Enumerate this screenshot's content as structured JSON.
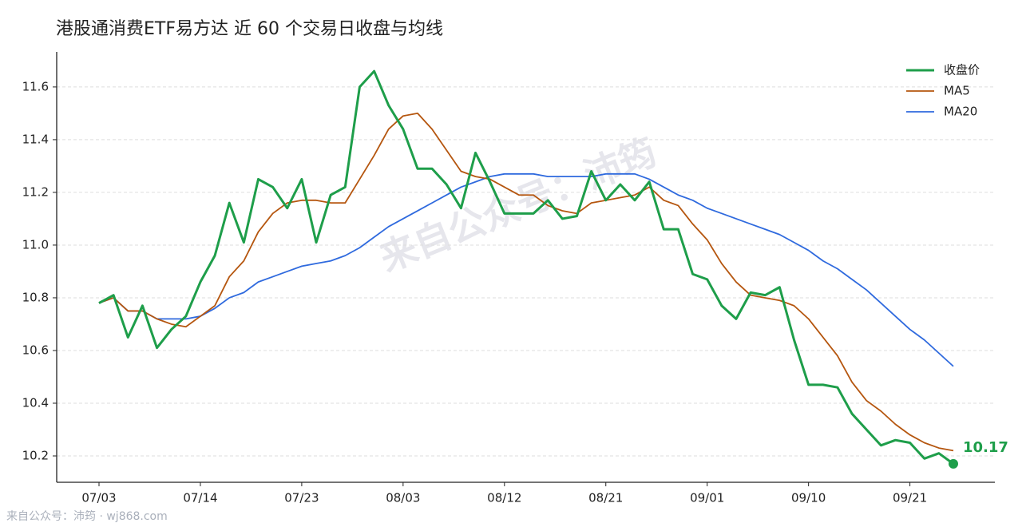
{
  "chart_data": {
    "type": "line",
    "title": "港股通消费ETF易方达 近 60 个交易日收盘与均线",
    "categories": [
      "07/03",
      null,
      null,
      null,
      null,
      null,
      null,
      "07/14",
      null,
      null,
      null,
      null,
      null,
      null,
      "07/23",
      null,
      null,
      null,
      null,
      null,
      null,
      "08/03",
      null,
      null,
      null,
      null,
      null,
      null,
      "08/12",
      null,
      null,
      null,
      null,
      null,
      null,
      "08/21",
      null,
      null,
      null,
      null,
      null,
      null,
      "09/01",
      null,
      null,
      null,
      null,
      null,
      null,
      "09/10",
      null,
      null,
      null,
      null,
      null,
      null,
      "09/21",
      null,
      null,
      null
    ],
    "series": [
      {
        "name": "收盘价",
        "color": "#1e9e4a",
        "width": 3,
        "values": [
          10.78,
          10.81,
          10.65,
          10.77,
          10.61,
          10.68,
          10.73,
          10.86,
          10.96,
          11.16,
          11.01,
          11.25,
          11.22,
          11.14,
          11.25,
          11.01,
          11.19,
          11.22,
          11.6,
          11.66,
          11.53,
          11.44,
          11.29,
          11.29,
          11.23,
          11.14,
          11.35,
          11.24,
          11.12,
          11.12,
          11.12,
          11.17,
          11.1,
          11.11,
          11.28,
          11.17,
          11.23,
          11.17,
          11.24,
          11.06,
          11.06,
          10.89,
          10.87,
          10.77,
          10.72,
          10.82,
          10.81,
          10.84,
          10.64,
          10.47,
          10.47,
          10.46,
          10.36,
          10.3,
          10.24,
          10.26,
          10.25,
          10.19,
          10.21,
          10.17
        ]
      },
      {
        "name": "MA5",
        "color": "#b5560f",
        "width": 1.8,
        "values": [
          10.78,
          10.8,
          10.75,
          10.75,
          10.72,
          10.7,
          10.69,
          10.73,
          10.77,
          10.88,
          10.94,
          11.05,
          11.12,
          11.16,
          11.17,
          11.17,
          11.16,
          11.16,
          11.25,
          11.34,
          11.44,
          11.49,
          11.5,
          11.44,
          11.36,
          11.28,
          11.26,
          11.25,
          11.22,
          11.19,
          11.19,
          11.15,
          11.13,
          11.12,
          11.16,
          11.17,
          11.18,
          11.19,
          11.22,
          11.17,
          11.15,
          11.08,
          11.02,
          10.93,
          10.86,
          10.81,
          10.8,
          10.79,
          10.77,
          10.72,
          10.65,
          10.58,
          10.48,
          10.41,
          10.37,
          10.32,
          10.28,
          10.25,
          10.23,
          10.22
        ]
      },
      {
        "name": "MA20",
        "color": "#2f6ade",
        "width": 1.8,
        "values": [
          10.78,
          10.8,
          10.75,
          10.75,
          10.72,
          10.72,
          10.72,
          10.73,
          10.76,
          10.8,
          10.82,
          10.86,
          10.88,
          10.9,
          10.92,
          10.93,
          10.94,
          10.96,
          10.99,
          11.03,
          11.07,
          11.1,
          11.13,
          11.16,
          11.19,
          11.22,
          11.24,
          11.26,
          11.27,
          11.27,
          11.27,
          11.26,
          11.26,
          11.26,
          11.26,
          11.27,
          11.27,
          11.27,
          11.25,
          11.22,
          11.19,
          11.17,
          11.14,
          11.12,
          11.1,
          11.08,
          11.06,
          11.04,
          11.01,
          10.98,
          10.94,
          10.91,
          10.87,
          10.83,
          10.78,
          10.73,
          10.68,
          10.64,
          10.59,
          10.54
        ]
      }
    ],
    "ylim": [
      10.1,
      11.733
    ],
    "yticks": [
      {
        "value": 10.2,
        "label": "10.2"
      },
      {
        "value": 10.4,
        "label": "10.4"
      },
      {
        "value": 10.6,
        "label": "10.6"
      },
      {
        "value": 10.8,
        "label": "10.8"
      },
      {
        "value": 11.0,
        "label": "11.0"
      },
      {
        "value": 11.2,
        "label": "11.2"
      },
      {
        "value": 11.4,
        "label": "11.4"
      },
      {
        "value": 11.6,
        "label": "11.6"
      }
    ],
    "grid": true,
    "legend": "upper right",
    "watermark": "来自公众号：沛筠",
    "footer": "来自公众号：沛筠 · wj868.com"
  }
}
